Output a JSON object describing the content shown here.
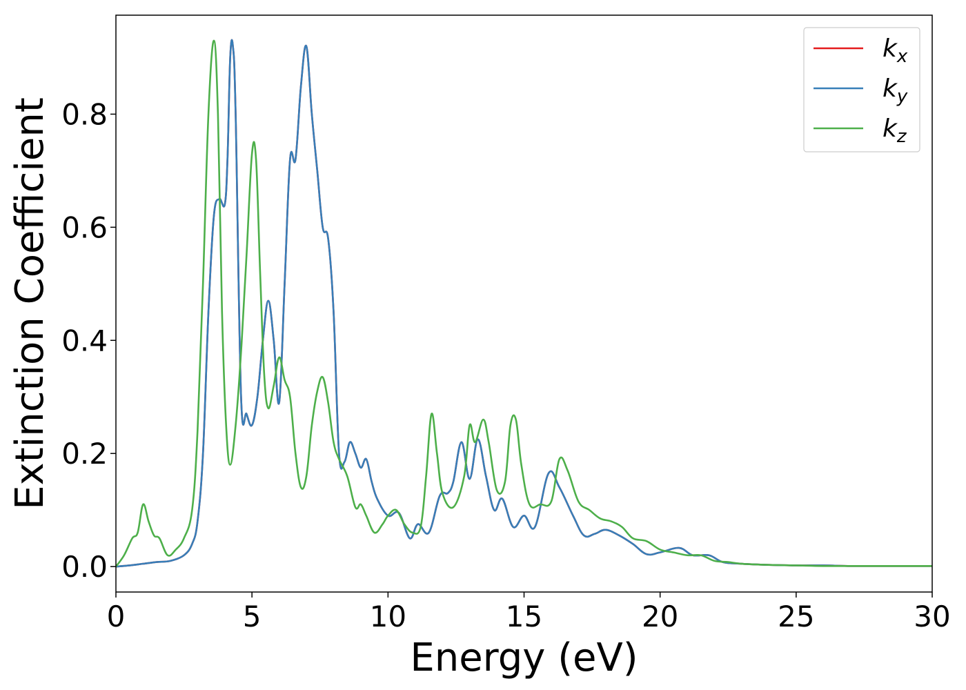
{
  "chart_data": {
    "type": "line",
    "title": "",
    "xlabel": "Energy (eV)",
    "ylabel": "Extinction Coefficient",
    "xlim": [
      0,
      30
    ],
    "ylim": [
      -0.045,
      0.975
    ],
    "xticks": [
      0,
      5,
      10,
      15,
      20,
      25,
      30
    ],
    "yticks": [
      0.0,
      0.2,
      0.4,
      0.6,
      0.8
    ],
    "xtick_labels": [
      "0",
      "5",
      "10",
      "15",
      "20",
      "25",
      "30"
    ],
    "ytick_labels": [
      "0.0",
      "0.2",
      "0.4",
      "0.6",
      "0.8"
    ],
    "grid": false,
    "legend": {
      "placement": "top-right",
      "entries": [
        {
          "base": "k",
          "sub": "x",
          "color": "#e41a1c"
        },
        {
          "base": "k",
          "sub": "y",
          "color": "#377eb8"
        },
        {
          "base": "k",
          "sub": "z",
          "color": "#4daf4a"
        }
      ]
    },
    "series": [
      {
        "name": "kx",
        "color": "#e41a1c",
        "x": [
          0,
          0.5,
          1,
          1.5,
          2,
          2.5,
          2.8,
          3,
          3.2,
          3.4,
          3.6,
          3.8,
          4.0,
          4.1,
          4.2,
          4.3,
          4.4,
          4.6,
          4.8,
          5.0,
          5.2,
          5.4,
          5.6,
          5.8,
          6.0,
          6.2,
          6.4,
          6.6,
          6.8,
          7.0,
          7.2,
          7.4,
          7.6,
          7.8,
          8.0,
          8.2,
          8.4,
          8.6,
          8.8,
          9.0,
          9.2,
          9.4,
          9.6,
          10.0,
          10.4,
          10.8,
          11.1,
          11.5,
          11.9,
          12.2,
          12.4,
          12.7,
          13.0,
          13.3,
          13.6,
          13.9,
          14.2,
          14.6,
          15.0,
          15.4,
          15.9,
          16.3,
          16.8,
          17.2,
          17.6,
          18.0,
          18.5,
          19.0,
          19.5,
          20.0,
          20.7,
          21.2,
          21.8,
          22.3,
          23.0,
          24.0,
          25.0,
          26.0,
          27.0,
          28.0,
          29.0,
          30.0
        ],
        "y": [
          0.0,
          0.002,
          0.005,
          0.008,
          0.01,
          0.02,
          0.04,
          0.08,
          0.2,
          0.45,
          0.62,
          0.65,
          0.64,
          0.72,
          0.9,
          0.92,
          0.8,
          0.3,
          0.27,
          0.25,
          0.3,
          0.4,
          0.47,
          0.4,
          0.29,
          0.5,
          0.72,
          0.72,
          0.85,
          0.92,
          0.8,
          0.7,
          0.6,
          0.58,
          0.45,
          0.2,
          0.185,
          0.22,
          0.2,
          0.175,
          0.19,
          0.15,
          0.12,
          0.09,
          0.095,
          0.05,
          0.075,
          0.06,
          0.125,
          0.13,
          0.15,
          0.22,
          0.155,
          0.225,
          0.16,
          0.1,
          0.12,
          0.07,
          0.09,
          0.07,
          0.165,
          0.14,
          0.09,
          0.055,
          0.058,
          0.065,
          0.055,
          0.04,
          0.022,
          0.025,
          0.033,
          0.02,
          0.02,
          0.008,
          0.005,
          0.003,
          0.002,
          0.002,
          0.001,
          0.001,
          0.001,
          0.001
        ]
      },
      {
        "name": "ky",
        "color": "#377eb8",
        "x": [
          0,
          0.5,
          1,
          1.5,
          2,
          2.5,
          2.8,
          3,
          3.2,
          3.4,
          3.6,
          3.8,
          4.0,
          4.1,
          4.2,
          4.3,
          4.4,
          4.6,
          4.8,
          5.0,
          5.2,
          5.4,
          5.6,
          5.8,
          6.0,
          6.2,
          6.4,
          6.6,
          6.8,
          7.0,
          7.2,
          7.4,
          7.6,
          7.8,
          8.0,
          8.2,
          8.4,
          8.6,
          8.8,
          9.0,
          9.2,
          9.4,
          9.6,
          10.0,
          10.4,
          10.8,
          11.1,
          11.5,
          11.9,
          12.2,
          12.4,
          12.7,
          13.0,
          13.3,
          13.6,
          13.9,
          14.2,
          14.6,
          15.0,
          15.4,
          15.9,
          16.3,
          16.8,
          17.2,
          17.6,
          18.0,
          18.5,
          19.0,
          19.5,
          20.0,
          20.7,
          21.2,
          21.8,
          22.3,
          23.0,
          24.0,
          25.0,
          26.0,
          27.0,
          28.0,
          29.0,
          30.0
        ],
        "y": [
          0.0,
          0.002,
          0.005,
          0.008,
          0.01,
          0.02,
          0.04,
          0.08,
          0.2,
          0.45,
          0.62,
          0.65,
          0.64,
          0.72,
          0.9,
          0.92,
          0.8,
          0.3,
          0.27,
          0.25,
          0.3,
          0.4,
          0.47,
          0.4,
          0.29,
          0.5,
          0.72,
          0.72,
          0.85,
          0.92,
          0.8,
          0.7,
          0.6,
          0.58,
          0.45,
          0.2,
          0.185,
          0.22,
          0.2,
          0.175,
          0.19,
          0.15,
          0.12,
          0.09,
          0.095,
          0.05,
          0.075,
          0.06,
          0.125,
          0.13,
          0.15,
          0.22,
          0.155,
          0.225,
          0.16,
          0.1,
          0.12,
          0.07,
          0.09,
          0.07,
          0.165,
          0.14,
          0.09,
          0.055,
          0.058,
          0.065,
          0.055,
          0.04,
          0.022,
          0.025,
          0.033,
          0.02,
          0.02,
          0.008,
          0.005,
          0.003,
          0.002,
          0.002,
          0.001,
          0.001,
          0.001,
          0.001
        ]
      },
      {
        "name": "kz",
        "color": "#4daf4a",
        "x": [
          0,
          0.3,
          0.6,
          0.8,
          1.0,
          1.2,
          1.4,
          1.6,
          1.9,
          2.2,
          2.5,
          2.8,
          3.0,
          3.2,
          3.4,
          3.6,
          3.75,
          3.9,
          4.05,
          4.2,
          4.4,
          4.6,
          4.8,
          5.0,
          5.15,
          5.3,
          5.45,
          5.6,
          5.8,
          6.0,
          6.2,
          6.4,
          6.6,
          6.8,
          7.0,
          7.2,
          7.4,
          7.6,
          7.8,
          8.0,
          8.2,
          8.5,
          8.8,
          9.0,
          9.2,
          9.5,
          9.8,
          10.0,
          10.3,
          10.6,
          10.9,
          11.2,
          11.4,
          11.6,
          11.8,
          12.0,
          12.4,
          12.8,
          13.0,
          13.2,
          13.5,
          13.7,
          14.0,
          14.3,
          14.5,
          14.7,
          14.9,
          15.2,
          15.6,
          16.0,
          16.3,
          16.6,
          17.0,
          17.4,
          17.8,
          18.2,
          18.6,
          19.0,
          19.5,
          20.0,
          20.5,
          21.0,
          21.5,
          22.0,
          22.5,
          23.0,
          24.0,
          25.0,
          26.0,
          27.0,
          28.0,
          29.0,
          30.0
        ],
        "y": [
          0.0,
          0.02,
          0.05,
          0.06,
          0.11,
          0.08,
          0.055,
          0.05,
          0.02,
          0.03,
          0.05,
          0.1,
          0.24,
          0.5,
          0.8,
          0.93,
          0.8,
          0.45,
          0.25,
          0.18,
          0.25,
          0.38,
          0.55,
          0.73,
          0.72,
          0.52,
          0.34,
          0.28,
          0.32,
          0.37,
          0.33,
          0.3,
          0.2,
          0.14,
          0.16,
          0.25,
          0.31,
          0.335,
          0.29,
          0.22,
          0.19,
          0.16,
          0.105,
          0.11,
          0.09,
          0.06,
          0.075,
          0.09,
          0.1,
          0.075,
          0.06,
          0.07,
          0.16,
          0.27,
          0.2,
          0.13,
          0.105,
          0.16,
          0.25,
          0.22,
          0.26,
          0.22,
          0.135,
          0.15,
          0.25,
          0.26,
          0.18,
          0.11,
          0.11,
          0.115,
          0.19,
          0.17,
          0.115,
          0.1,
          0.085,
          0.08,
          0.07,
          0.05,
          0.045,
          0.03,
          0.025,
          0.02,
          0.02,
          0.01,
          0.008,
          0.005,
          0.003,
          0.002,
          0.001,
          0.001,
          0.001,
          0.001,
          0.001
        ]
      }
    ]
  }
}
